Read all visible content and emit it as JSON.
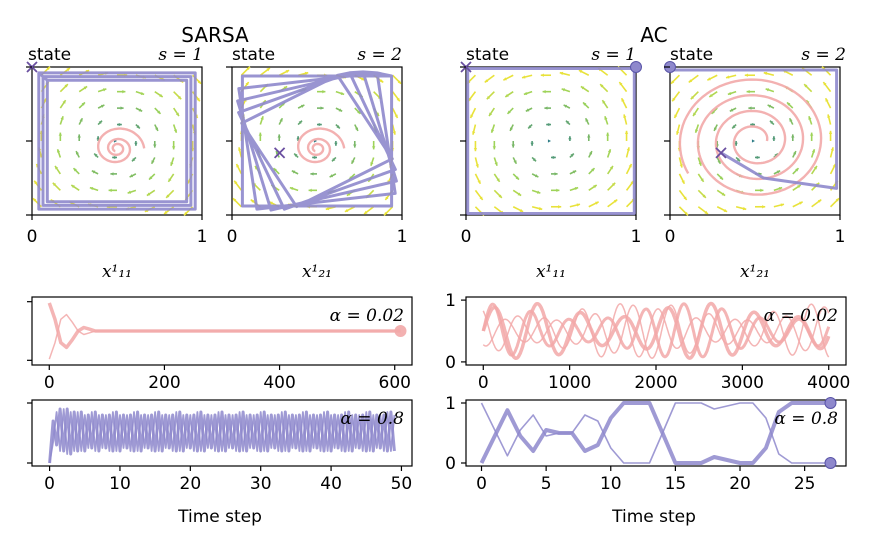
{
  "figure": {
    "left_group_title": "SARSA",
    "right_group_title": "AC",
    "bottom_xlabel": "Time step"
  },
  "colors": {
    "pink": "#f2a8a8",
    "purple": "#8e88cc",
    "field_dark": "#2e7d86",
    "field_light": "#9bd25a",
    "field_yellow": "#e8e23a"
  },
  "chart_data": [
    {
      "type": "quiver",
      "group": "SARSA",
      "title": "state s = 1",
      "title_prefix": "state ",
      "title_math": "s = 1",
      "xlabel": "x¹₁₁",
      "xticks": [
        "0",
        "1"
      ],
      "xlim": [
        0,
        1
      ],
      "ylim": [
        0,
        1
      ],
      "markers": [
        {
          "type": "x",
          "x": 0.0,
          "y": 1.0
        }
      ],
      "trajectories": [
        {
          "name": "",
          "style": "spiral-inward",
          "color": "pink",
          "center": [
            0.5,
            0.45
          ]
        },
        {
          "name": "",
          "style": "boundary-cycle",
          "color": "purple"
        }
      ]
    },
    {
      "type": "quiver",
      "group": "SARSA",
      "title": "state s = 2",
      "title_prefix": "state ",
      "title_math": "s = 2",
      "xlabel": "x¹₂₁",
      "xticks": [
        "0",
        "1"
      ],
      "xlim": [
        0,
        1
      ],
      "ylim": [
        0,
        1
      ],
      "markers": [
        {
          "type": "x",
          "x": 0.28,
          "y": 0.42
        }
      ],
      "trajectories": [
        {
          "name": "",
          "style": "spiral-inward",
          "color": "pink",
          "center": [
            0.5,
            0.45
          ]
        },
        {
          "name": "",
          "style": "rotating-squares",
          "color": "purple"
        }
      ]
    },
    {
      "type": "quiver",
      "group": "AC",
      "title": "state s = 1",
      "title_prefix": "state ",
      "title_math": "s = 1",
      "xlabel": "x¹₁₁",
      "xticks": [
        "0",
        "1"
      ],
      "xlim": [
        0,
        1
      ],
      "ylim": [
        0,
        1
      ],
      "markers": [
        {
          "type": "x",
          "x": 0.0,
          "y": 1.0
        },
        {
          "type": "dot",
          "x": 1.0,
          "y": 1.0
        }
      ],
      "trajectories": [
        {
          "name": "",
          "style": "boundary-cycle",
          "color": "purple"
        }
      ]
    },
    {
      "type": "quiver",
      "group": "AC",
      "title": "state s = 2",
      "title_prefix": "state ",
      "title_math": "s = 2",
      "xlabel": "x¹₂₁",
      "xticks": [
        "0",
        "1"
      ],
      "xlim": [
        0,
        1
      ],
      "ylim": [
        0,
        1
      ],
      "markers": [
        {
          "type": "x",
          "x": 0.3,
          "y": 0.42
        },
        {
          "type": "dot",
          "x": 0.0,
          "y": 1.0
        }
      ],
      "trajectories": [
        {
          "name": "",
          "style": "spiral-outward",
          "color": "pink"
        },
        {
          "name": "",
          "style": "diagonal-to-corner",
          "color": "purple"
        }
      ]
    },
    {
      "type": "line",
      "group": "SARSA",
      "annotation": "α = 0.02",
      "xticks": [
        0,
        200,
        400,
        600
      ],
      "xlim": [
        -30,
        630
      ],
      "ylim": [
        -0.08,
        1.08
      ],
      "color": "pink",
      "series": [
        {
          "name": "",
          "x": [
            0,
            10,
            20,
            30,
            40,
            50,
            60,
            70,
            80,
            100,
            130,
            200,
            400,
            610
          ],
          "y": [
            0.98,
            0.7,
            0.3,
            0.22,
            0.35,
            0.5,
            0.56,
            0.53,
            0.5,
            0.5,
            0.5,
            0.5,
            0.5,
            0.5
          ]
        },
        {
          "name": "",
          "x": [
            0,
            10,
            20,
            30,
            40,
            50,
            60,
            70,
            80,
            100,
            130,
            200,
            400,
            610
          ],
          "y": [
            0.02,
            0.3,
            0.7,
            0.78,
            0.65,
            0.5,
            0.44,
            0.47,
            0.5,
            0.5,
            0.5,
            0.5,
            0.5,
            0.5
          ]
        }
      ],
      "end_marker": {
        "x": 610,
        "y": 0.5
      }
    },
    {
      "type": "line",
      "group": "SARSA",
      "annotation": "α = 0.8",
      "xticks": [
        0,
        10,
        20,
        30,
        40,
        50
      ],
      "xlim": [
        -2.5,
        51.5
      ],
      "ylim": [
        -0.05,
        1.05
      ],
      "color": "purple",
      "series": [
        {
          "name": "",
          "x": [
            0,
            0.5,
            1,
            1.5,
            2,
            2.5,
            3,
            3.5,
            4,
            4.5,
            5,
            5.5,
            6,
            6.5,
            7,
            7.5,
            8,
            8.5,
            9,
            9.5,
            10,
            10.5,
            11,
            11.5,
            12,
            12.5,
            13,
            13.5,
            14,
            14.5,
            15,
            15.5,
            16,
            16.5,
            17,
            17.5,
            18,
            18.5,
            19,
            19.5,
            20,
            20.5,
            21,
            21.5,
            22,
            22.5,
            23,
            23.5,
            24,
            24.5,
            25,
            25.5,
            26,
            26.5,
            27,
            27.5,
            28,
            28.5,
            29,
            29.5,
            30,
            30.5,
            31,
            31.5,
            32,
            32.5,
            33,
            33.5,
            34,
            34.5,
            35,
            35.5,
            36,
            36.5,
            37,
            37.5,
            38,
            38.5,
            39,
            39.5,
            40,
            40.5,
            41,
            41.5,
            42,
            42.5,
            43,
            43.5,
            44,
            44.5,
            45,
            45.5,
            46,
            46.5,
            47,
            47.5,
            48,
            48.5,
            49
          ],
          "y": [
            0.0,
            0.7,
            0.3,
            0.9,
            0.2,
            0.9,
            0.15,
            0.85,
            0.2,
            0.85,
            0.2,
            0.8,
            0.25,
            0.85,
            0.2,
            0.8,
            0.25,
            0.8,
            0.2,
            0.85,
            0.2,
            0.8,
            0.25,
            0.8,
            0.2,
            0.85,
            0.2,
            0.8,
            0.25,
            0.8,
            0.2,
            0.85,
            0.2,
            0.8,
            0.25,
            0.8,
            0.2,
            0.85,
            0.2,
            0.8,
            0.25,
            0.8,
            0.2,
            0.85,
            0.2,
            0.8,
            0.25,
            0.8,
            0.2,
            0.85,
            0.2,
            0.8,
            0.25,
            0.8,
            0.2,
            0.85,
            0.2,
            0.8,
            0.25,
            0.8,
            0.2,
            0.85,
            0.2,
            0.8,
            0.25,
            0.8,
            0.2,
            0.85,
            0.2,
            0.8,
            0.25,
            0.8,
            0.2,
            0.85,
            0.2,
            0.8,
            0.25,
            0.8,
            0.2,
            0.85,
            0.2,
            0.8,
            0.25,
            0.8,
            0.2,
            0.85,
            0.2,
            0.8,
            0.25,
            0.8,
            0.2,
            0.85,
            0.2,
            0.8,
            0.25,
            0.8,
            0.2,
            0.85,
            0.2
          ]
        },
        {
          "name": "",
          "x": [
            0,
            0.5,
            1,
            1.5,
            2,
            2.5,
            3,
            3.5,
            4,
            4.5,
            5,
            5.5,
            6,
            6.5,
            7,
            7.5,
            8,
            8.5,
            9,
            9.5,
            10,
            10.5,
            11,
            11.5,
            12,
            12.5,
            13,
            13.5,
            14,
            14.5,
            15,
            15.5,
            16,
            16.5,
            17,
            17.5,
            18,
            18.5,
            19,
            19.5,
            20,
            20.5,
            21,
            21.5,
            22,
            22.5,
            23,
            23.5,
            24,
            24.5,
            25,
            25.5,
            26,
            26.5,
            27,
            27.5,
            28,
            28.5,
            29,
            29.5,
            30,
            30.5,
            31,
            31.5,
            32,
            32.5,
            33,
            33.5,
            34,
            34.5,
            35,
            35.5,
            36,
            36.5,
            37,
            37.5,
            38,
            38.5,
            39,
            39.5,
            40,
            40.5,
            41,
            41.5,
            42,
            42.5,
            43,
            43.5,
            44,
            44.5,
            45,
            45.5,
            46,
            46.5,
            47,
            47.5,
            48,
            48.5,
            49
          ],
          "y": [
            0.0,
            0.35,
            0.85,
            0.2,
            0.9,
            0.15,
            0.85,
            0.2,
            0.85,
            0.2,
            0.8,
            0.25,
            0.85,
            0.2,
            0.8,
            0.25,
            0.8,
            0.2,
            0.85,
            0.2,
            0.8,
            0.25,
            0.8,
            0.2,
            0.85,
            0.2,
            0.8,
            0.25,
            0.8,
            0.2,
            0.85,
            0.2,
            0.8,
            0.25,
            0.8,
            0.2,
            0.85,
            0.2,
            0.8,
            0.25,
            0.8,
            0.2,
            0.85,
            0.2,
            0.8,
            0.25,
            0.8,
            0.2,
            0.85,
            0.2,
            0.8,
            0.25,
            0.8,
            0.2,
            0.85,
            0.2,
            0.8,
            0.25,
            0.8,
            0.2,
            0.85,
            0.2,
            0.8,
            0.25,
            0.8,
            0.2,
            0.85,
            0.2,
            0.8,
            0.25,
            0.8,
            0.2,
            0.85,
            0.2,
            0.8,
            0.25,
            0.8,
            0.2,
            0.85,
            0.2,
            0.8,
            0.25,
            0.8,
            0.2,
            0.85,
            0.2,
            0.8,
            0.25,
            0.8,
            0.2,
            0.85,
            0.2,
            0.8,
            0.25,
            0.8,
            0.2,
            0.85,
            0.2,
            0.8
          ]
        }
      ]
    },
    {
      "type": "line",
      "group": "AC",
      "annotation": "α = 0.02",
      "xticks": [
        0,
        1000,
        2000,
        3000,
        4000
      ],
      "yticks": [
        0,
        1
      ],
      "xlim": [
        -200,
        4200
      ],
      "ylim": [
        -0.05,
        1.05
      ],
      "color": "pink",
      "series": [
        {
          "name": "",
          "x": [
            0,
            4000
          ],
          "y_range": [
            0.05,
            0.98
          ],
          "pattern": "oscillating"
        }
      ]
    },
    {
      "type": "line",
      "group": "AC",
      "annotation": "α = 0.8",
      "xticks": [
        0,
        5,
        10,
        15,
        20,
        25
      ],
      "yticks": [
        0,
        1
      ],
      "xlim": [
        -1.2,
        28.2
      ],
      "ylim": [
        -0.05,
        1.05
      ],
      "color": "purple",
      "series": [
        {
          "name": "",
          "x": [
            0,
            2,
            3,
            4,
            5,
            6,
            7,
            8,
            9,
            10,
            11,
            13,
            14,
            15,
            17,
            18,
            20,
            21,
            22,
            23,
            24,
            27
          ],
          "y": [
            0.0,
            0.88,
            0.45,
            0.2,
            0.55,
            0.5,
            0.5,
            0.2,
            0.3,
            0.75,
            1.0,
            1.0,
            0.5,
            0.0,
            0.0,
            0.1,
            0.0,
            0.0,
            0.25,
            0.85,
            1.0,
            1.0
          ]
        },
        {
          "name": "",
          "x": [
            0,
            2,
            3,
            4,
            5,
            6,
            7,
            8,
            9,
            10,
            11,
            13,
            14,
            15,
            17,
            18,
            20,
            21,
            22,
            23,
            24,
            27
          ],
          "y": [
            1.0,
            0.12,
            0.55,
            0.8,
            0.45,
            0.5,
            0.5,
            0.8,
            0.7,
            0.25,
            0.0,
            0.0,
            0.5,
            1.0,
            1.0,
            0.9,
            1.0,
            1.0,
            0.75,
            0.15,
            0.0,
            0.0
          ]
        }
      ],
      "end_markers": [
        {
          "x": 27,
          "y": 1.0
        },
        {
          "x": 27,
          "y": 0.0
        }
      ]
    }
  ]
}
